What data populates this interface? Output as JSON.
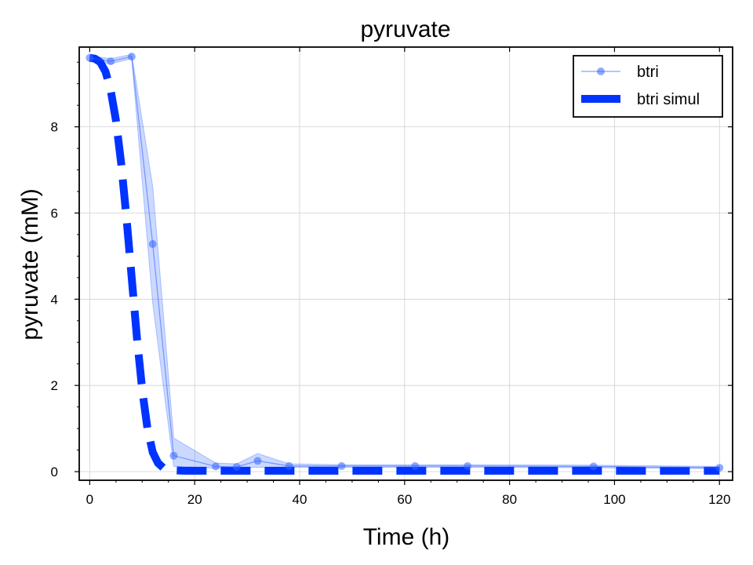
{
  "chart_data": {
    "type": "line",
    "title": "pyruvate",
    "xlabel": "Time (h)",
    "ylabel": "pyruvate (mM)",
    "xlim": [
      -2,
      122.5
    ],
    "ylim": [
      -0.2,
      9.85
    ],
    "xticks": [
      0,
      20,
      40,
      60,
      80,
      100,
      120
    ],
    "yticks": [
      0,
      2,
      4,
      6,
      8
    ],
    "grid": true,
    "legend_position": "top-right",
    "series": [
      {
        "name": "btri",
        "style": "line-with-markers-and-band",
        "color": "#3366ff",
        "x": [
          0,
          4,
          8,
          12,
          16,
          24,
          28,
          32,
          38,
          48,
          62,
          72,
          96,
          120
        ],
        "y": [
          9.6,
          9.52,
          9.63,
          5.28,
          0.37,
          0.12,
          0.11,
          0.25,
          0.13,
          0.13,
          0.13,
          0.13,
          0.12,
          0.09
        ],
        "lower": [
          9.55,
          9.46,
          9.58,
          3.9,
          0.12,
          0.08,
          0.08,
          0.1,
          0.1,
          0.1,
          0.1,
          0.1,
          0.09,
          0.07
        ],
        "upper": [
          9.65,
          9.58,
          9.68,
          6.62,
          0.78,
          0.2,
          0.18,
          0.42,
          0.18,
          0.16,
          0.16,
          0.16,
          0.15,
          0.12
        ]
      },
      {
        "name": "btri simul",
        "style": "thick-dashed",
        "color": "#0033ff",
        "x": [
          0,
          1,
          2,
          3,
          4,
          5,
          6,
          7,
          8,
          9,
          10,
          11,
          12,
          13,
          14,
          15,
          16,
          18,
          20,
          25,
          30,
          40,
          60,
          80,
          100,
          120
        ],
        "y": [
          9.6,
          9.58,
          9.5,
          9.28,
          8.85,
          8.15,
          7.15,
          5.9,
          4.5,
          3.1,
          1.9,
          1.0,
          0.45,
          0.2,
          0.09,
          0.05,
          0.03,
          0.02,
          0.02,
          0.02,
          0.02,
          0.02,
          0.02,
          0.02,
          0.02,
          0.02
        ]
      }
    ]
  }
}
